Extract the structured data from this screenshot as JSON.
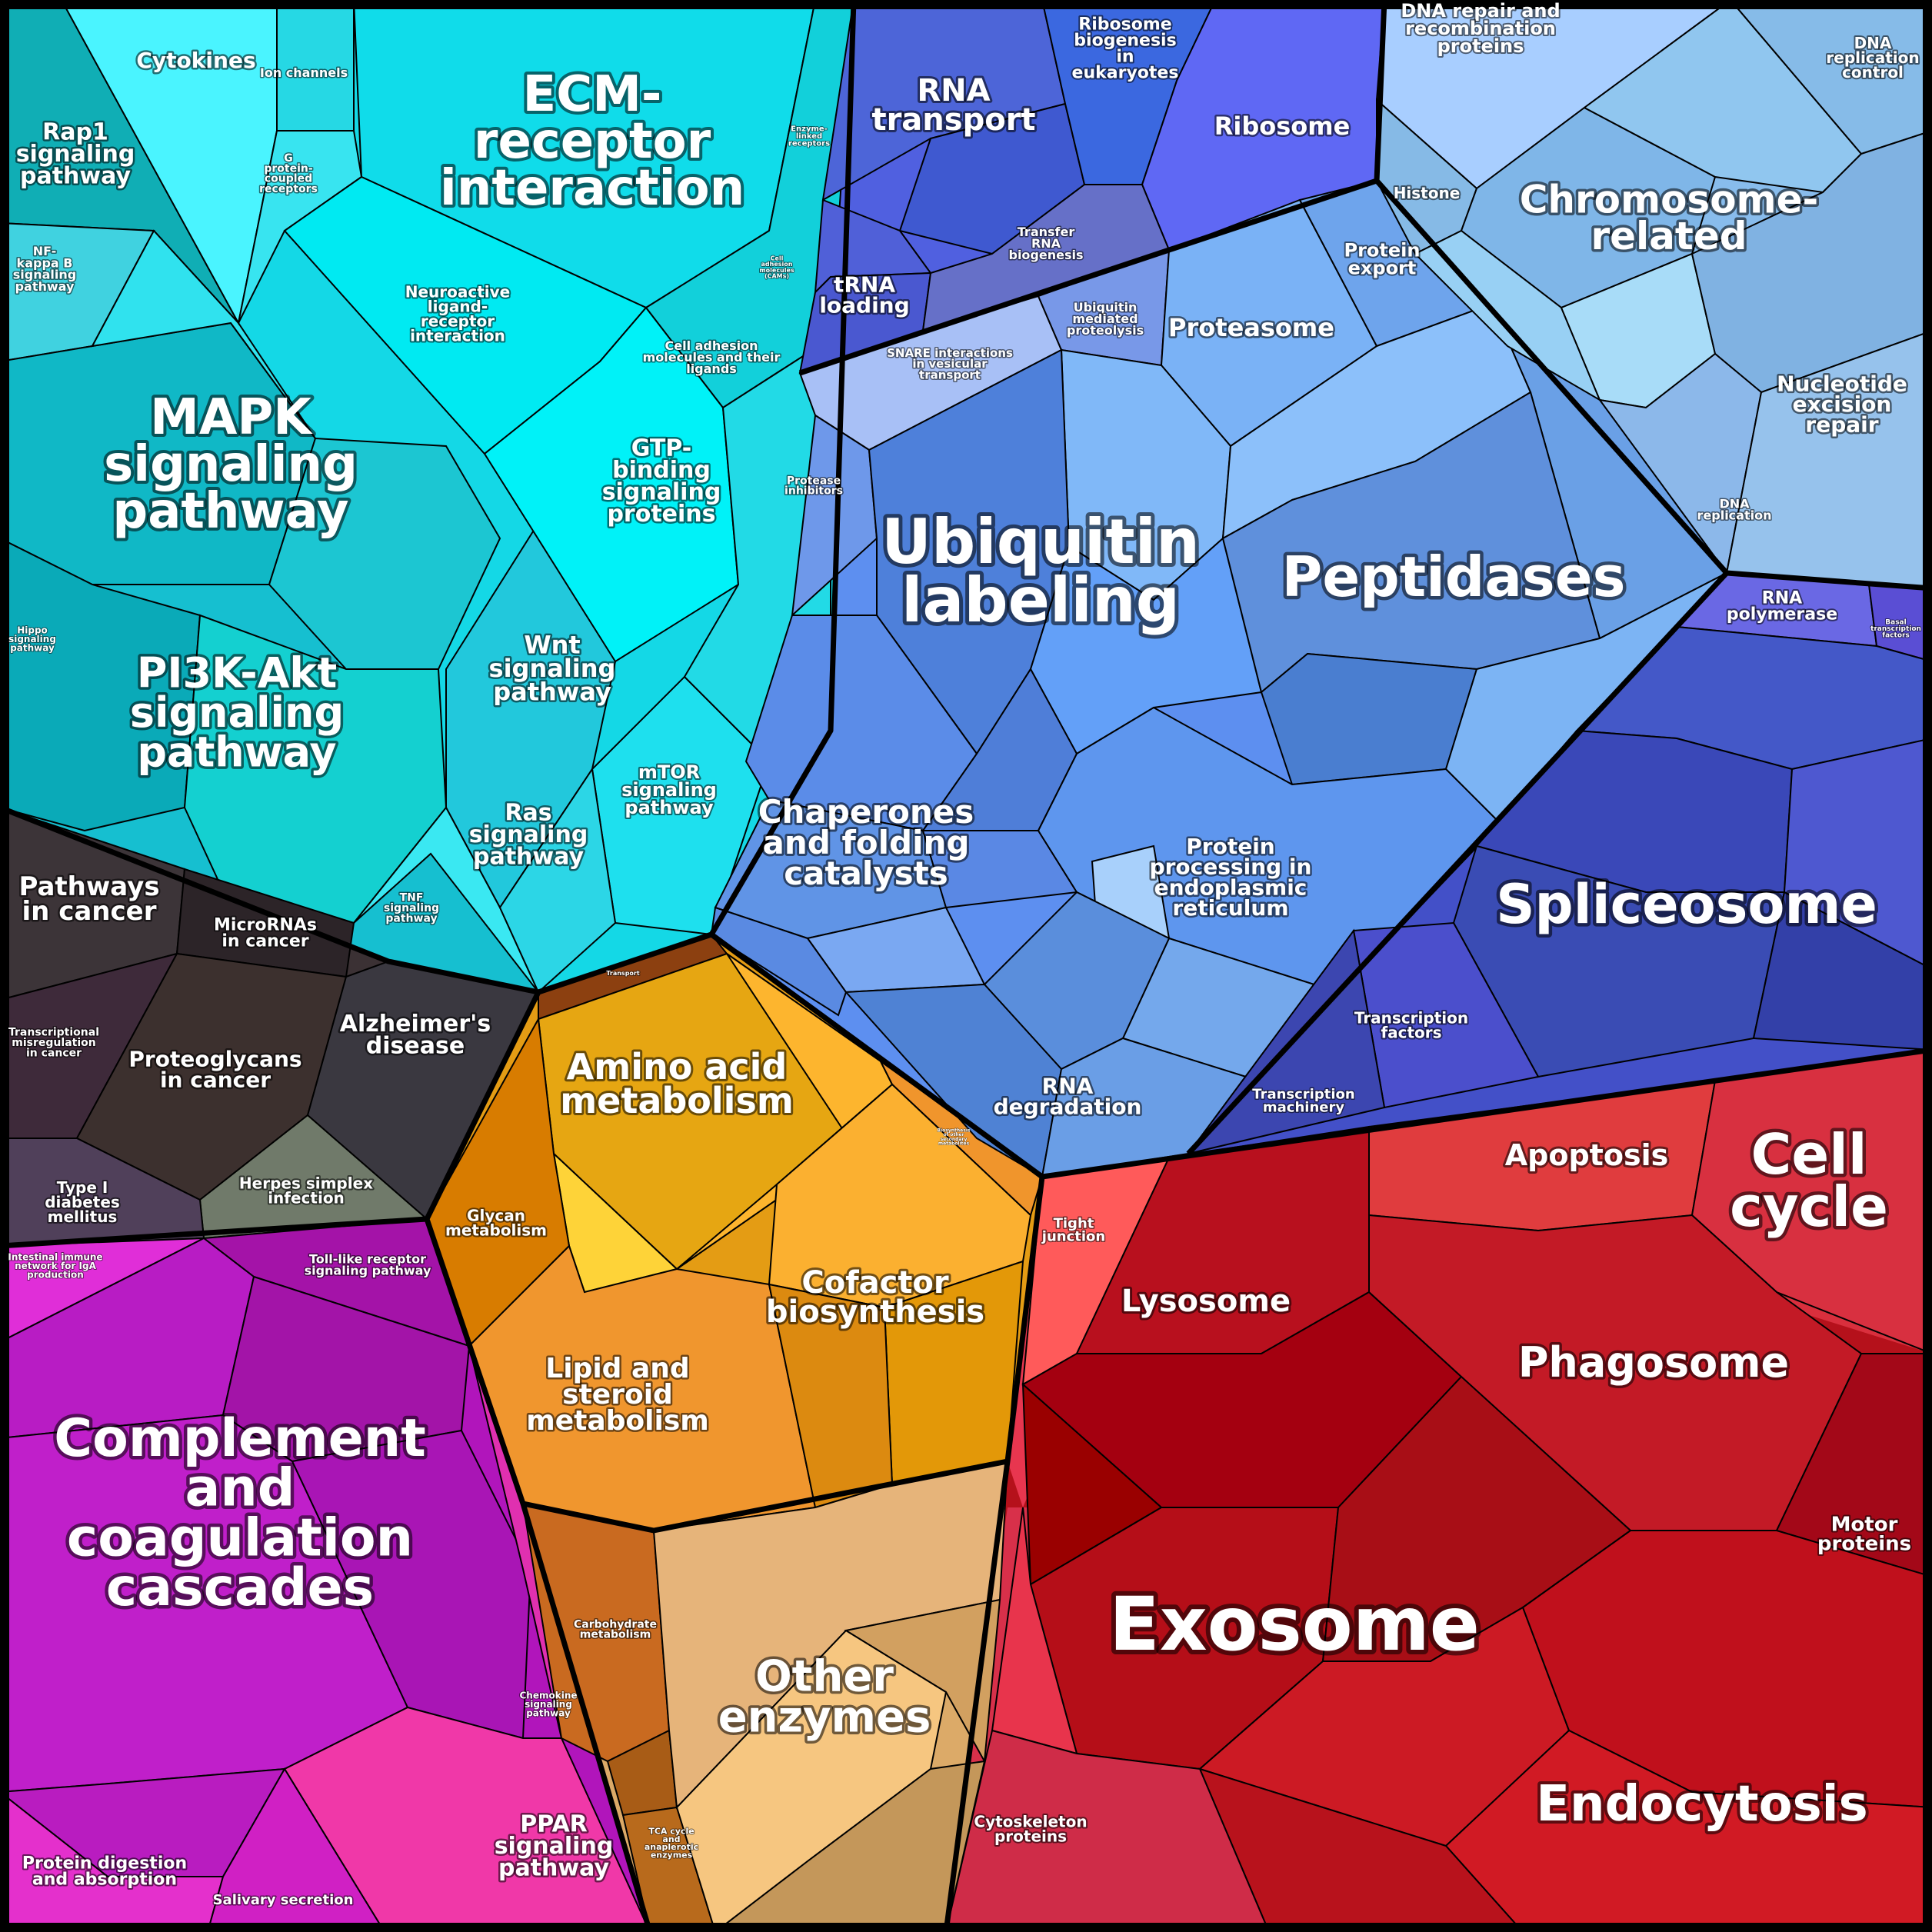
{
  "colors": {
    "signaling": "#16c8d8",
    "ecm": "#12d8e4",
    "cancer": "#3a3033",
    "complement": "#b414bd",
    "metabolism": "#e29a14",
    "other_enzymes": "#dcac6c",
    "protein": "#5d8ef0",
    "rna": "#4f63e0",
    "chromosome": "#86baea",
    "spliceosome": "#4350c6",
    "exosome": "#b6121c",
    "cell_cycle": "#d8303c"
  },
  "labels": {
    "cytokines": "Cytokines",
    "ion_channels": "Ion channels",
    "ecm": "ECM- receptor interaction",
    "rap1": "Rap1 signaling pathway",
    "g_protein": "G protein- coupled receptors",
    "enzyme_linked": "Enzyme- linked receptors",
    "nfkb": "NF- kappa B signaling pathway",
    "neuroactive": "Neuroactive ligand- receptor interaction",
    "cams": "Cell adhesion molecules (CAMs)",
    "cell_adhesion": "Cell adhesion molecules and their ligands",
    "mapk": "MAPK signaling pathway",
    "gtp": "GTP- binding signaling proteins",
    "hippo": "Hippo signaling pathway",
    "wnt": "Wnt signaling pathway",
    "pi3k": "PI3K-Akt signaling pathway",
    "mtor": "mTOR signaling pathway",
    "ras": "Ras signaling pathway",
    "tnf": "TNF signaling pathway",
    "pathways_cancer": "Pathways in cancer",
    "micrornas": "MicroRNAs in cancer",
    "alzheimers": "Alzheimer's disease",
    "transcriptional_misreg": "Transcriptional misregulation in cancer",
    "proteoglycans": "Proteoglycans in cancer",
    "herpes": "Herpes simplex infection",
    "diabetes": "Type I diabetes mellitus",
    "intestinal": "Intestinal immune network for IgA production",
    "toll": "Toll-like receptor signaling pathway",
    "complement": "Complement and coagulation cascades",
    "chemokine": "Chemokine signaling pathway",
    "ppar": "PPAR signaling pathway",
    "protein_digestion": "Protein digestion and absorption",
    "salivary": "Salivary secretion",
    "transport": "Transport",
    "amino_acid": "Amino acid metabolism",
    "glycan": "Glycan metabolism",
    "secondary": "Biosynthesis of other secondary metabolites",
    "cofactor": "Cofactor biosynthesis",
    "lipid": "Lipid and steroid metabolism",
    "carbohydrate": "Carbohydrate metabolism",
    "tca": "TCA cycle and anaplerotic enzymes",
    "other_enzymes": "Other enzymes",
    "rna_transport": "RNA transport",
    "ribosome_biogenesis": "Ribosome biogenesis in eukaryotes",
    "ribosome": "Ribosome",
    "trna": "tRNA loading",
    "transfer_rna": "Transfer RNA biogenesis",
    "ubiquitin_mediated": "Ubiquitin mediated proteolysis",
    "proteasome": "Proteasome",
    "protein_export": "Protein export",
    "snare": "SNARE interactions in vesicular transport",
    "protease_inhibitors": "Protease inhibitors",
    "ubiquitin_labeling": "Ubiquitin labeling",
    "peptidases": "Peptidases",
    "chaperones": "Chaperones and folding catalysts",
    "protein_processing": "Protein processing in endoplasmic reticulum",
    "rna_degradation": "RNA degradation",
    "dna_repair": "DNA repair and recombination proteins",
    "dna_replication_control": "DNA replication control",
    "histone": "Histone",
    "chromosome": "Chromosome- related",
    "nucleotide_excision": "Nucleotide excision repair",
    "dna_replication": "DNA replication",
    "rna_polymerase": "RNA polymerase",
    "basal_tf": "Basal transcription factors",
    "spliceosome": "Spliceosome",
    "transcription_factors": "Transcription factors",
    "transcription_machinery": "Transcription machinery",
    "apoptosis": "Apoptosis",
    "cell_cycle": "Cell cycle",
    "tight_junction": "Tight junction",
    "lysosome": "Lysosome",
    "phagosome": "Phagosome",
    "motor_proteins": "Motor proteins",
    "exosome": "Exosome",
    "endocytosis": "Endocytosis",
    "cytoskeleton": "Cytoskeleton proteins"
  }
}
